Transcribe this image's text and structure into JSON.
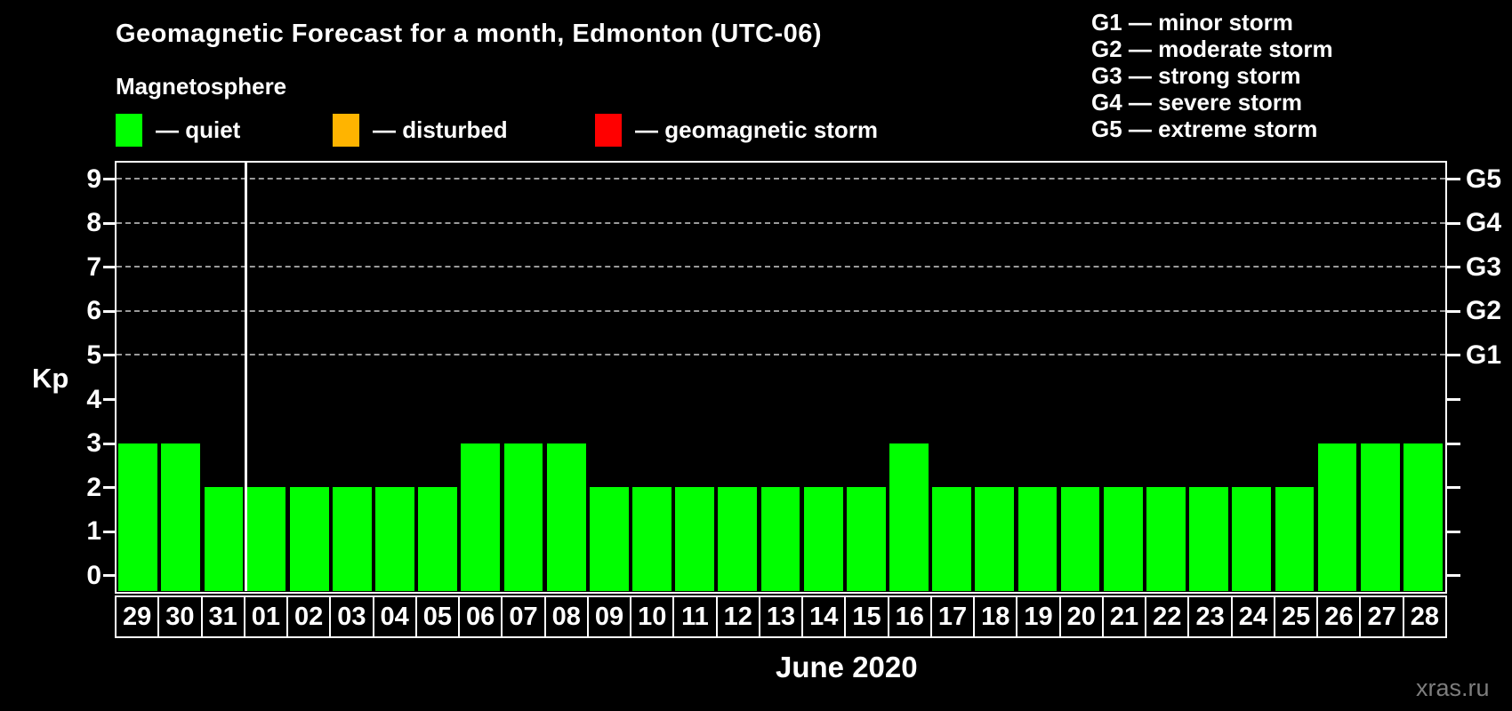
{
  "header": {
    "title": "Geomagnetic Forecast for a month, Edmonton (UTC-06)"
  },
  "legend": {
    "title": "Magnetosphere",
    "items": [
      {
        "key": "quiet",
        "label": "— quiet",
        "color": "#00ff00"
      },
      {
        "key": "disturbed",
        "label": "— disturbed",
        "color": "#ffb400"
      },
      {
        "key": "geomagnetic-storm",
        "label": "— geomagnetic storm",
        "color": "#ff0000"
      }
    ]
  },
  "storm_scale": [
    "G1 — minor storm",
    "G2 — moderate storm",
    "G3 — strong storm",
    "G4 — severe storm",
    "G5 — extreme storm"
  ],
  "watermark": "xras.ru",
  "chart_data": {
    "type": "bar",
    "title": "Geomagnetic Forecast for a month, Edmonton (UTC-06)",
    "xlabel": "June 2020",
    "ylabel": "Kp",
    "ylim": [
      -0.36,
      9.37
    ],
    "yticks": [
      0,
      1,
      2,
      3,
      4,
      5,
      6,
      7,
      8,
      9
    ],
    "gridlines_at_kp": [
      5,
      6,
      7,
      8,
      9
    ],
    "grid_style": "dashed gray horizontal lines at G-storm levels only",
    "right_axis_labels": [
      {
        "label": "G1",
        "kp": 5
      },
      {
        "label": "G2",
        "kp": 6
      },
      {
        "label": "G3",
        "kp": 7
      },
      {
        "label": "G4",
        "kp": 8
      },
      {
        "label": "G5",
        "kp": 9
      }
    ],
    "categories": [
      "29",
      "30",
      "31",
      "01",
      "02",
      "03",
      "04",
      "05",
      "06",
      "07",
      "08",
      "09",
      "10",
      "11",
      "12",
      "13",
      "14",
      "15",
      "16",
      "17",
      "18",
      "19",
      "20",
      "21",
      "22",
      "23",
      "24",
      "25",
      "26",
      "27",
      "28"
    ],
    "values": [
      3,
      3,
      2,
      2,
      2,
      2,
      2,
      2,
      3,
      3,
      3,
      2,
      2,
      2,
      2,
      2,
      2,
      2,
      3,
      2,
      2,
      2,
      2,
      2,
      2,
      2,
      2,
      2,
      3,
      3,
      3
    ],
    "bar_color": "#00ff00",
    "separator_after_index": 2,
    "frame_color": "#ffffff",
    "gridline_color": "#9a9a9a",
    "background_color": "#000000",
    "legend_position": "top"
  }
}
